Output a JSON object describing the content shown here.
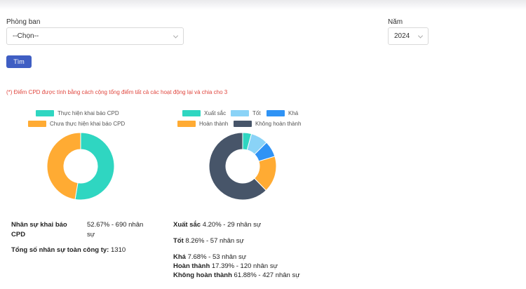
{
  "filters": {
    "department_label": "Phòng ban",
    "department_value": "--Chọn--",
    "year_label": "Năm",
    "year_value": "2024",
    "search_button": "Tìm"
  },
  "note": "(*) Điểm CPD được tính bằng cách cộng tổng điểm tất cả các hoạt động lại và chia cho 3",
  "chart_data": [
    {
      "type": "pie",
      "labels": [
        "Thực hiện khai báo CPD",
        "Chưa thực hiện khai báo CPD"
      ],
      "values": [
        52.67,
        47.33
      ],
      "colors": [
        "#2fd6c1",
        "#ffab33"
      ],
      "donut": true,
      "legend": "top"
    },
    {
      "type": "pie",
      "labels": [
        "Xuất sắc",
        "Tốt",
        "Khá",
        "Hoàn thành",
        "Không hoàn thành"
      ],
      "values": [
        4.2,
        8.26,
        7.68,
        17.39,
        61.88
      ],
      "colors": [
        "#2fd6c1",
        "#8ad3f7",
        "#2f93f5",
        "#ffab33",
        "#475569"
      ],
      "donut": true,
      "legend": "top"
    }
  ],
  "stats_left": {
    "declared_label_1": "Nhân sự khai báo",
    "declared_label_2": "CPD",
    "declared_value_1": "52.67% - 690 nhân",
    "declared_value_2": "sự",
    "total_label": "Tổng số nhân sự toàn công ty:",
    "total_value": "1310"
  },
  "stats_right": [
    {
      "label": "Xuất sắc",
      "value": "4.20% - 29 nhân sự"
    },
    {
      "label": "Tốt",
      "value": "8.26% - 57 nhân sự"
    },
    {
      "label": "Khá",
      "value": "7.68% - 53 nhân sự"
    },
    {
      "label": "Hoàn thành",
      "value": "17.39% - 120 nhân sự"
    },
    {
      "label": "Không hoàn thành",
      "value": "61.88% - 427 nhân sự"
    }
  ]
}
